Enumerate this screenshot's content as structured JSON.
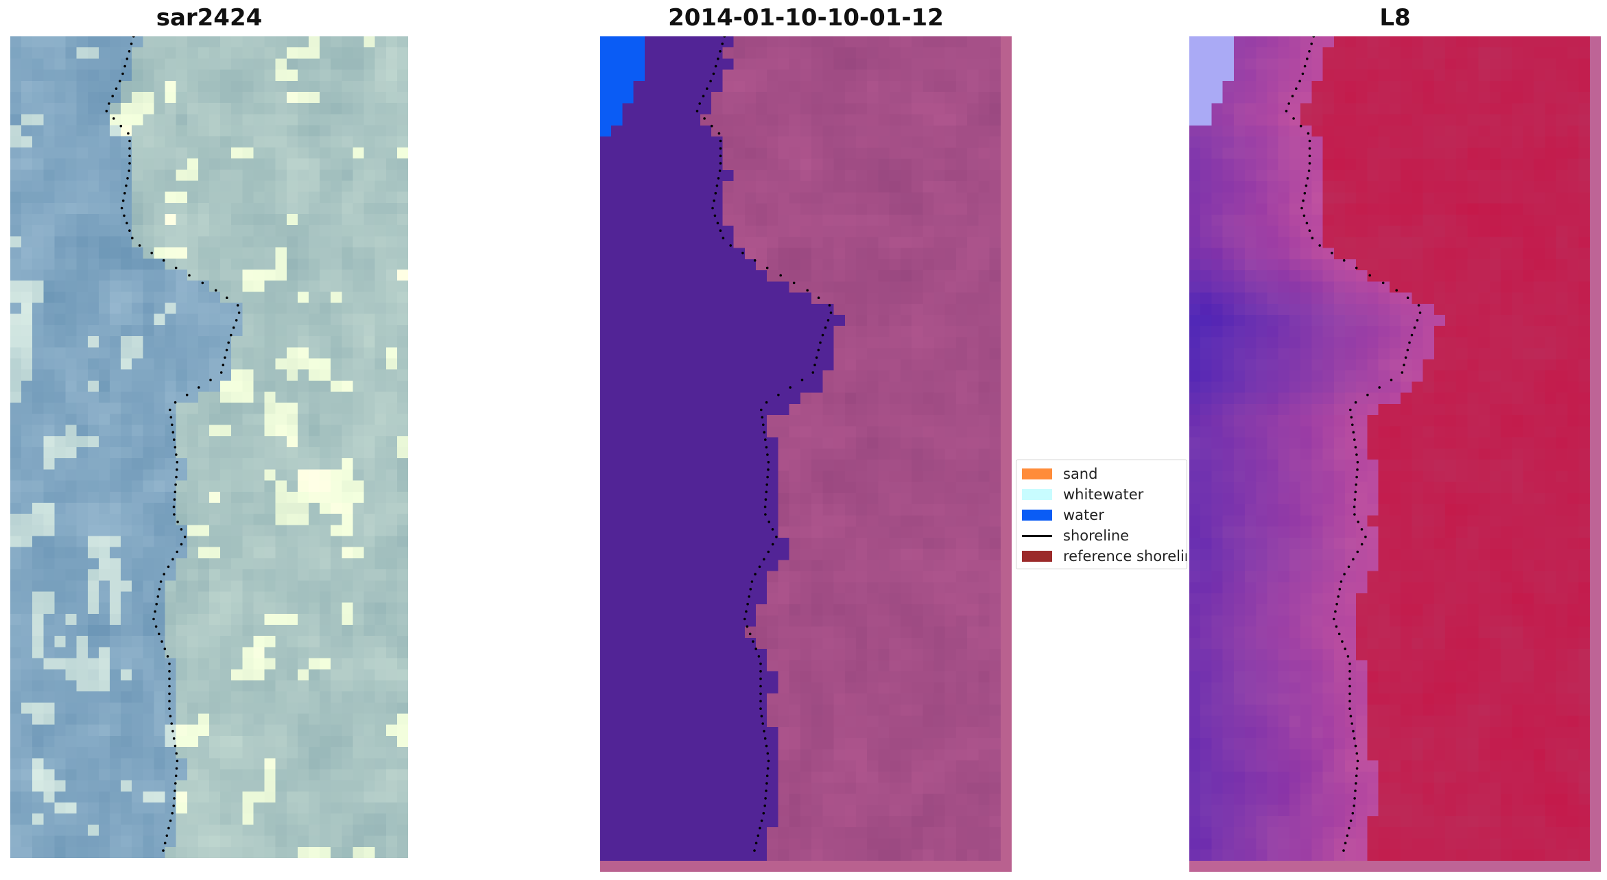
{
  "panels": [
    {
      "title": "sar2424",
      "style": "rgb"
    },
    {
      "title": "2014-01-10-10-01-12",
      "style": "classified"
    },
    {
      "title": "L8",
      "style": "index"
    }
  ],
  "legend": {
    "items": [
      {
        "label": "sand",
        "type": "patch",
        "color": "#ff8c3a"
      },
      {
        "label": "whitewater",
        "type": "patch",
        "color": "#c8fcff"
      },
      {
        "label": "water",
        "type": "patch",
        "color": "#0a5cf5"
      },
      {
        "label": "shoreline",
        "type": "line",
        "color": "#000000"
      },
      {
        "label": "reference shoreline",
        "type": "patch",
        "color": "#9b2a2a"
      }
    ]
  },
  "colors": {
    "water_class": "#522496",
    "land_overlay": "#b9618f",
    "shoreline": "#000000"
  }
}
